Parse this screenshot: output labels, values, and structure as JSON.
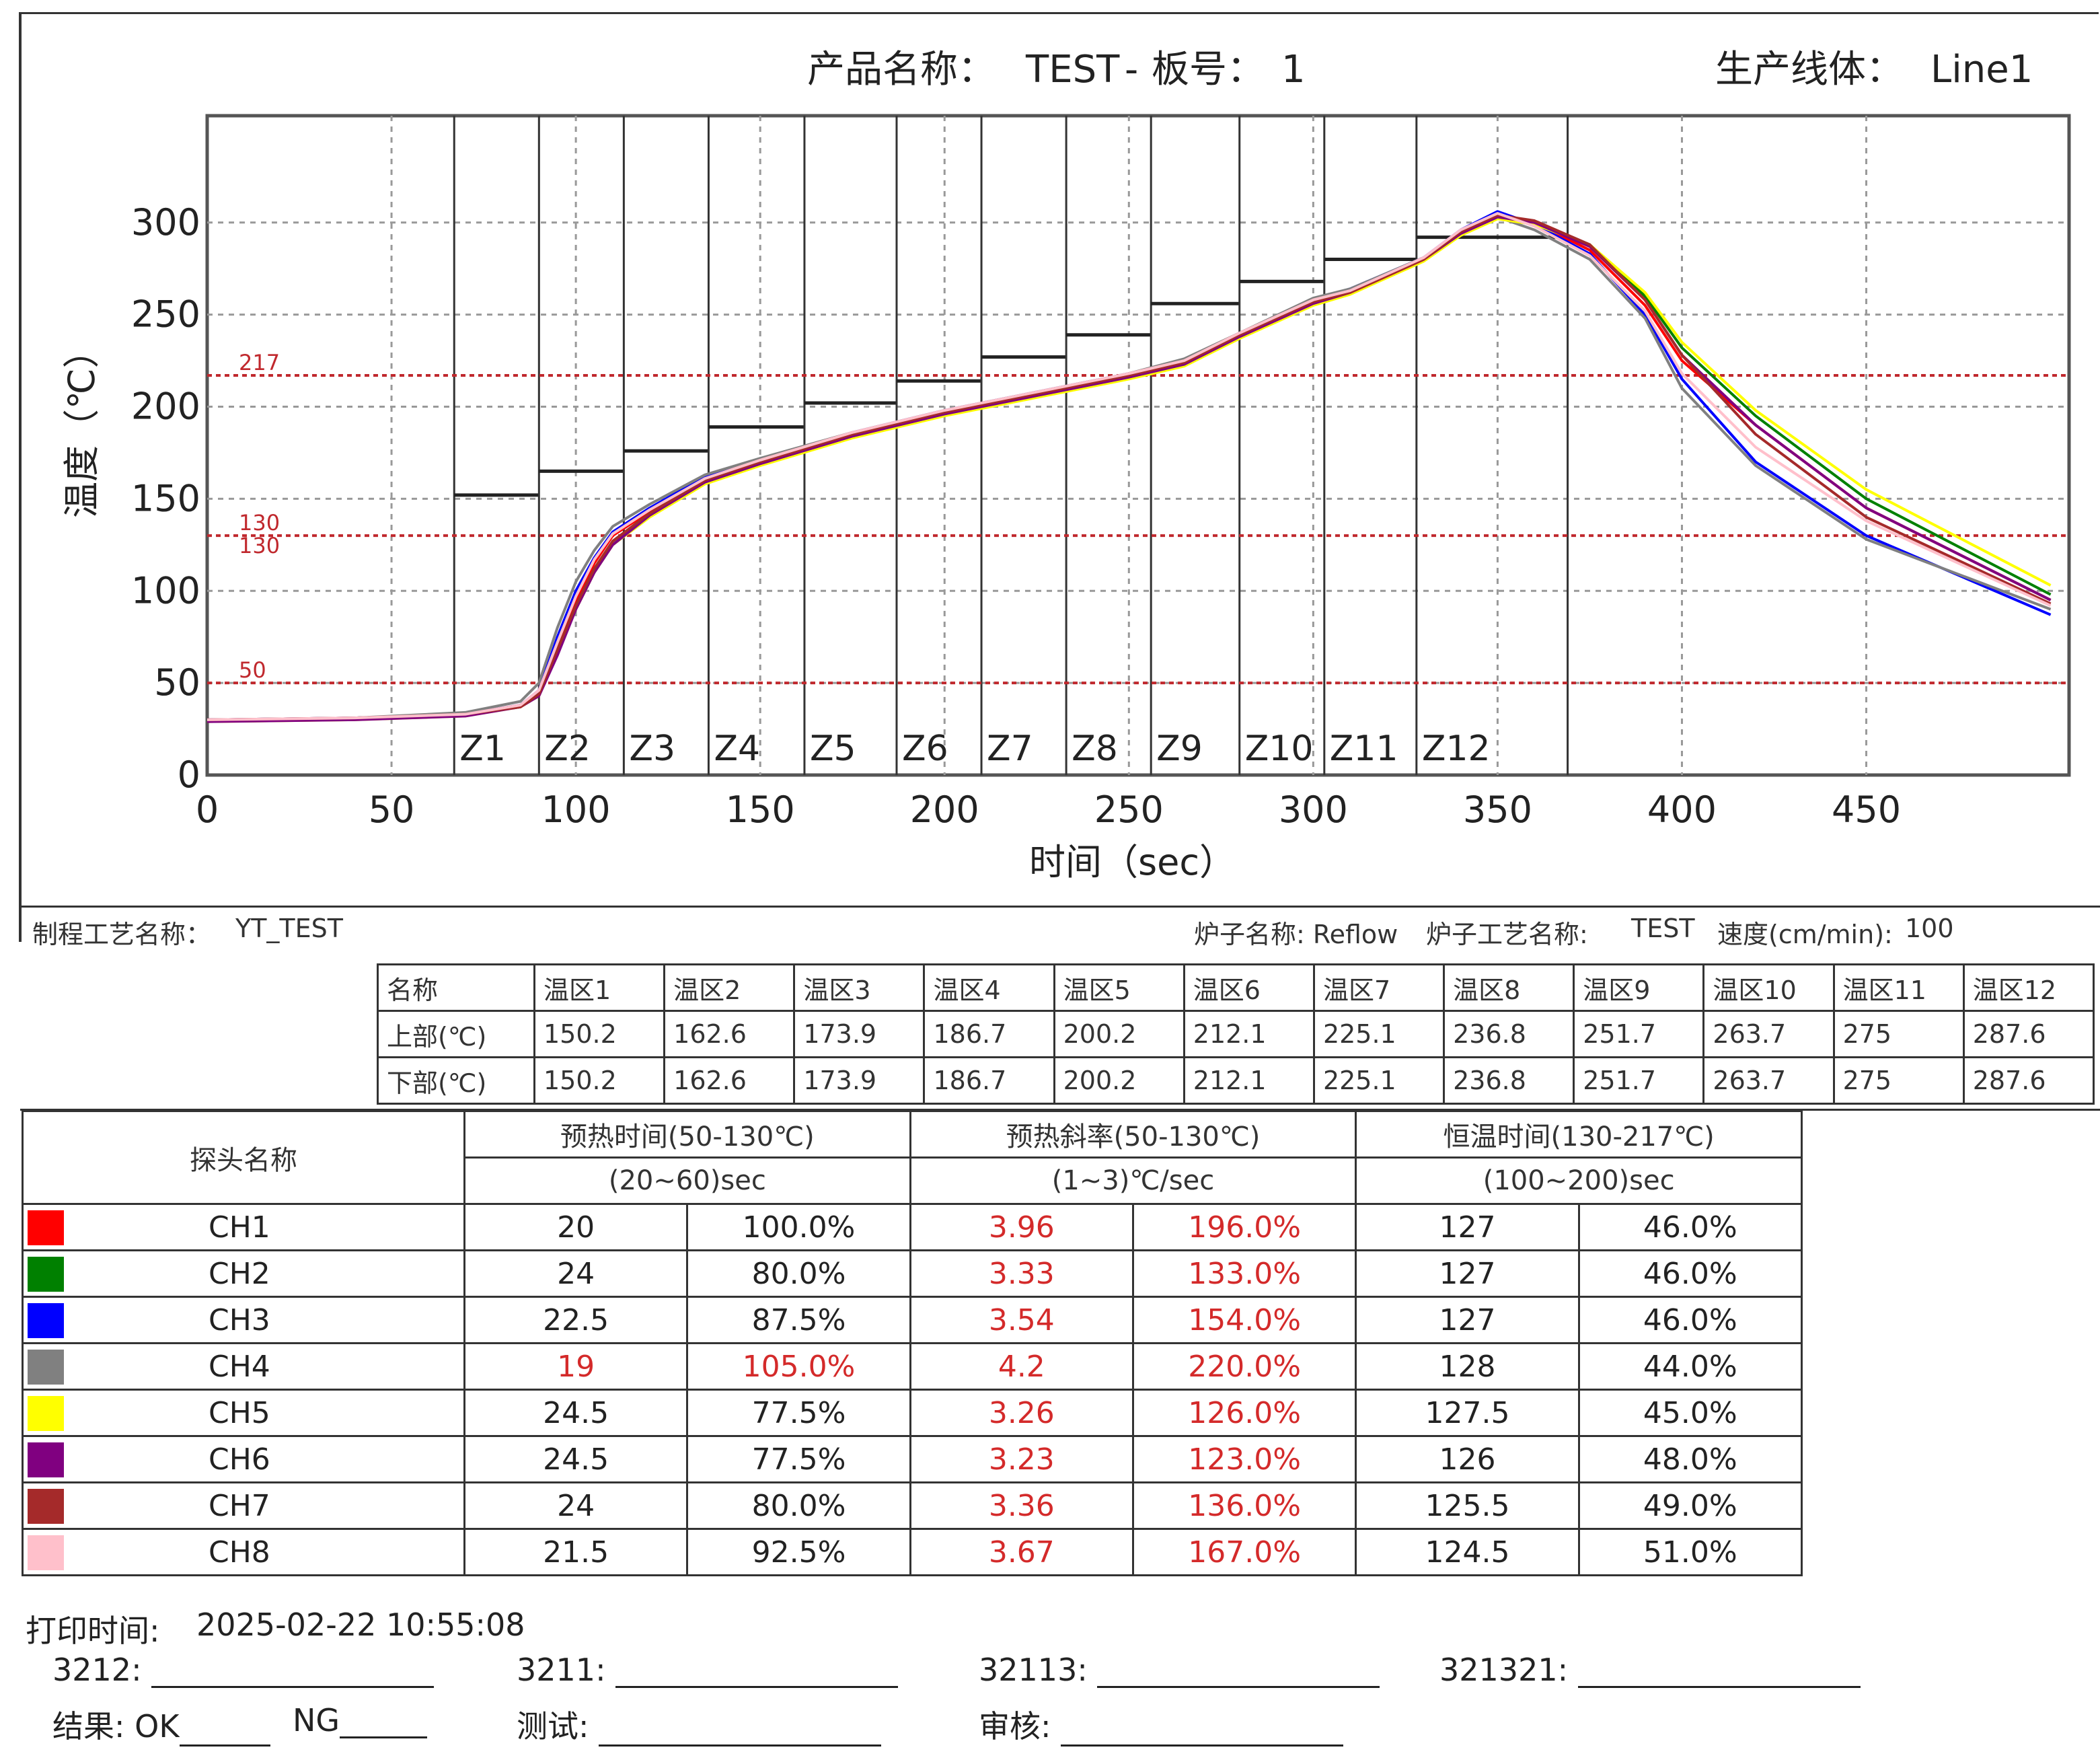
{
  "header": {
    "product_label": "产品名称：",
    "product": "TEST",
    "board_label": "板号：",
    "board": "1",
    "line_label": "生产线体：",
    "line": "Line1"
  },
  "chart_data": {
    "type": "line",
    "xlabel": "时间（sec）",
    "ylabel": "温度（℃）",
    "xlim": [
      0,
      505
    ],
    "ylim": [
      0,
      358
    ],
    "xticks": [
      0,
      50,
      100,
      150,
      200,
      250,
      300,
      350,
      400,
      450
    ],
    "yticks": [
      0,
      50,
      100,
      150,
      200,
      250,
      300
    ],
    "grid": true,
    "reference_lines": [
      {
        "label": "217",
        "y": 217
      },
      {
        "label": "130",
        "y": 130
      },
      {
        "label": "130",
        "y": 130
      },
      {
        "label": "50",
        "y": 50
      }
    ],
    "zones": [
      {
        "name": "Z1",
        "x_start": 67,
        "x_end": 90,
        "setpoint": 152
      },
      {
        "name": "Z2",
        "x_start": 90,
        "x_end": 113,
        "setpoint": 165
      },
      {
        "name": "Z3",
        "x_start": 113,
        "x_end": 136,
        "setpoint": 176
      },
      {
        "name": "Z4",
        "x_start": 136,
        "x_end": 162,
        "setpoint": 189
      },
      {
        "name": "Z5",
        "x_start": 162,
        "x_end": 187,
        "setpoint": 202
      },
      {
        "name": "Z6",
        "x_start": 187,
        "x_end": 210,
        "setpoint": 214
      },
      {
        "name": "Z7",
        "x_start": 210,
        "x_end": 233,
        "setpoint": 227
      },
      {
        "name": "Z8",
        "x_start": 233,
        "x_end": 256,
        "setpoint": 239
      },
      {
        "name": "Z9",
        "x_start": 256,
        "x_end": 280,
        "setpoint": 256
      },
      {
        "name": "Z10",
        "x_start": 280,
        "x_end": 303,
        "setpoint": 268
      },
      {
        "name": "Z11",
        "x_start": 303,
        "x_end": 328,
        "setpoint": 280
      },
      {
        "name": "Z12",
        "x_start": 328,
        "x_end": 369,
        "setpoint": 292
      }
    ],
    "series": [
      {
        "name": "CH1",
        "color": "#ff0000",
        "x": [
          0,
          40,
          70,
          85,
          90,
          95,
          100,
          105,
          110,
          120,
          135,
          150,
          175,
          200,
          225,
          250,
          265,
          280,
          300,
          310,
          330,
          340,
          350,
          360,
          375,
          390,
          400,
          420,
          450,
          500
        ],
        "y": [
          30,
          31,
          33,
          38,
          45,
          70,
          95,
          115,
          130,
          143,
          160,
          170,
          185,
          197,
          207,
          218,
          225,
          240,
          258,
          262,
          280,
          295,
          305,
          300,
          285,
          255,
          225,
          190,
          145,
          95
        ]
      },
      {
        "name": "CH2",
        "color": "#008000",
        "x": [
          0,
          40,
          70,
          85,
          90,
          95,
          100,
          105,
          110,
          120,
          135,
          150,
          175,
          200,
          225,
          250,
          265,
          280,
          300,
          310,
          330,
          340,
          350,
          360,
          375,
          390,
          400,
          420,
          450,
          500
        ],
        "y": [
          29,
          31,
          33,
          37,
          45,
          68,
          92,
          112,
          127,
          142,
          160,
          170,
          185,
          197,
          207,
          217,
          224,
          239,
          257,
          263,
          280,
          294,
          303,
          300,
          288,
          260,
          232,
          195,
          150,
          98
        ]
      },
      {
        "name": "CH3",
        "color": "#0000ff",
        "x": [
          0,
          40,
          70,
          85,
          90,
          95,
          100,
          105,
          110,
          120,
          135,
          150,
          175,
          200,
          225,
          250,
          265,
          280,
          300,
          310,
          330,
          340,
          350,
          360,
          375,
          390,
          400,
          420,
          450,
          500
        ],
        "y": [
          30,
          31,
          33,
          38,
          46,
          75,
          100,
          118,
          132,
          145,
          162,
          171,
          186,
          198,
          208,
          218,
          225,
          240,
          258,
          264,
          281,
          296,
          306,
          299,
          283,
          250,
          215,
          170,
          130,
          87
        ]
      },
      {
        "name": "CH4",
        "color": "#808080",
        "x": [
          0,
          40,
          70,
          85,
          90,
          95,
          100,
          105,
          110,
          120,
          135,
          150,
          175,
          200,
          225,
          250,
          265,
          280,
          300,
          310,
          330,
          340,
          350,
          360,
          375,
          390,
          400,
          420,
          450,
          500
        ],
        "y": [
          30,
          31,
          34,
          40,
          50,
          80,
          105,
          122,
          135,
          147,
          163,
          172,
          186,
          198,
          208,
          218,
          226,
          240,
          259,
          264,
          281,
          295,
          303,
          296,
          280,
          248,
          210,
          168,
          128,
          90
        ]
      },
      {
        "name": "CH5",
        "color": "#ffff00",
        "x": [
          0,
          40,
          70,
          85,
          90,
          95,
          100,
          105,
          110,
          120,
          135,
          150,
          175,
          200,
          225,
          250,
          265,
          280,
          300,
          310,
          330,
          340,
          350,
          360,
          375,
          390,
          400,
          420,
          450,
          500
        ],
        "y": [
          29,
          30,
          32,
          37,
          43,
          66,
          90,
          110,
          125,
          140,
          158,
          168,
          183,
          195,
          205,
          215,
          222,
          237,
          255,
          261,
          279,
          293,
          302,
          299,
          288,
          262,
          235,
          198,
          155,
          103
        ]
      },
      {
        "name": "CH6",
        "color": "#800080",
        "x": [
          0,
          40,
          70,
          85,
          90,
          95,
          100,
          105,
          110,
          120,
          135,
          150,
          175,
          200,
          225,
          250,
          265,
          280,
          300,
          310,
          330,
          340,
          350,
          360,
          375,
          390,
          400,
          420,
          450,
          500
        ],
        "y": [
          29,
          30,
          32,
          37,
          43,
          65,
          90,
          110,
          125,
          141,
          159,
          169,
          184,
          196,
          206,
          216,
          223,
          238,
          256,
          262,
          280,
          294,
          303,
          300,
          287,
          258,
          228,
          190,
          145,
          95
        ]
      },
      {
        "name": "CH7",
        "color": "#a52a2a",
        "x": [
          0,
          40,
          70,
          85,
          90,
          95,
          100,
          105,
          110,
          120,
          135,
          150,
          175,
          200,
          225,
          250,
          265,
          280,
          300,
          310,
          330,
          340,
          350,
          360,
          375,
          390,
          400,
          420,
          450,
          500
        ],
        "y": [
          30,
          31,
          33,
          37,
          44,
          68,
          92,
          112,
          127,
          142,
          160,
          170,
          185,
          197,
          207,
          217,
          224,
          239,
          257,
          262,
          280,
          295,
          304,
          301,
          288,
          258,
          228,
          185,
          140,
          93
        ]
      },
      {
        "name": "CH8",
        "color": "#ffc0cb",
        "x": [
          0,
          40,
          70,
          85,
          90,
          95,
          100,
          105,
          110,
          120,
          135,
          150,
          175,
          200,
          225,
          250,
          265,
          280,
          300,
          310,
          330,
          340,
          350,
          360,
          375,
          390,
          400,
          420,
          450,
          500
        ],
        "y": [
          30,
          31,
          33,
          38,
          46,
          72,
          97,
          117,
          131,
          144,
          161,
          171,
          186,
          198,
          208,
          218,
          225,
          240,
          258,
          263,
          281,
          296,
          305,
          298,
          282,
          252,
          218,
          178,
          138,
          92
        ]
      }
    ]
  },
  "process": {
    "name_label": "制程工艺名称：",
    "name_value": "YT_TEST",
    "oven_name": "炉子名称: Reflow",
    "oven_process": "炉子工艺名称:",
    "oven_process_value": "TEST",
    "speed": "速度(cm/min):",
    "speed_value": "100",
    "header_label": "名称",
    "zones": [
      "温区1",
      "温区2",
      "温区3",
      "温区4",
      "温区5",
      "温区6",
      "温区7",
      "温区8",
      "温区9",
      "温区10",
      "温区11",
      "温区12"
    ],
    "upper_label": "上部(℃)",
    "lower_label": "下部(℃)",
    "upper": [
      "150.2",
      "162.6",
      "173.9",
      "186.7",
      "200.2",
      "212.1",
      "225.1",
      "236.8",
      "251.7",
      "263.7",
      "275",
      "287.6"
    ],
    "lower": [
      "150.2",
      "162.6",
      "173.9",
      "186.7",
      "200.2",
      "212.1",
      "225.1",
      "236.8",
      "251.7",
      "263.7",
      "275",
      "287.6"
    ]
  },
  "probe_table": {
    "probe_header": "探头名称",
    "headers": [
      "预热时间(50-130℃)",
      "预热斜率(50-130℃)",
      "恒温时间(130-217℃)"
    ],
    "ranges": [
      "(20~60)sec",
      "(1~3)℃/sec",
      "(100~200)sec"
    ],
    "rows": [
      {
        "name": "CH1",
        "color": "#ff0000",
        "pre_time": "20",
        "pre_time_pct": "100.0%",
        "slope": "3.96",
        "slope_pct": "196.0%",
        "soak": "127",
        "soak_pct": "46.0%"
      },
      {
        "name": "CH2",
        "color": "#008000",
        "pre_time": "24",
        "pre_time_pct": "80.0%",
        "slope": "3.33",
        "slope_pct": "133.0%",
        "soak": "127",
        "soak_pct": "46.0%"
      },
      {
        "name": "CH3",
        "color": "#0000ff",
        "pre_time": "22.5",
        "pre_time_pct": "87.5%",
        "slope": "3.54",
        "slope_pct": "154.0%",
        "soak": "127",
        "soak_pct": "46.0%"
      },
      {
        "name": "CH4",
        "color": "#808080",
        "pre_time": "19",
        "pre_time_pct": "105.0%",
        "slope": "4.2",
        "slope_pct": "220.0%",
        "soak": "128",
        "soak_pct": "44.0%"
      },
      {
        "name": "CH5",
        "color": "#ffff00",
        "pre_time": "24.5",
        "pre_time_pct": "77.5%",
        "slope": "3.26",
        "slope_pct": "126.0%",
        "soak": "127.5",
        "soak_pct": "45.0%"
      },
      {
        "name": "CH6",
        "color": "#800080",
        "pre_time": "24.5",
        "pre_time_pct": "77.5%",
        "slope": "3.23",
        "slope_pct": "123.0%",
        "soak": "126",
        "soak_pct": "48.0%"
      },
      {
        "name": "CH7",
        "color": "#a52a2a",
        "pre_time": "24",
        "pre_time_pct": "80.0%",
        "slope": "3.36",
        "slope_pct": "136.0%",
        "soak": "125.5",
        "soak_pct": "49.0%"
      },
      {
        "name": "CH8",
        "color": "#ffc0cb",
        "pre_time": "21.5",
        "pre_time_pct": "92.5%",
        "slope": "3.67",
        "slope_pct": "167.0%",
        "soak": "124.5",
        "soak_pct": "51.0%"
      }
    ]
  },
  "footer": {
    "print_time_label": "打印时间:",
    "print_time": "2025-02-22 10:55:08",
    "sig1": "3212:",
    "sig2": "3211:",
    "sig3": "32113:",
    "sig4": "321321:",
    "result_label": "结果: OK",
    "ng_label": "NG",
    "test_label": "测试:",
    "review_label": "审核:"
  }
}
